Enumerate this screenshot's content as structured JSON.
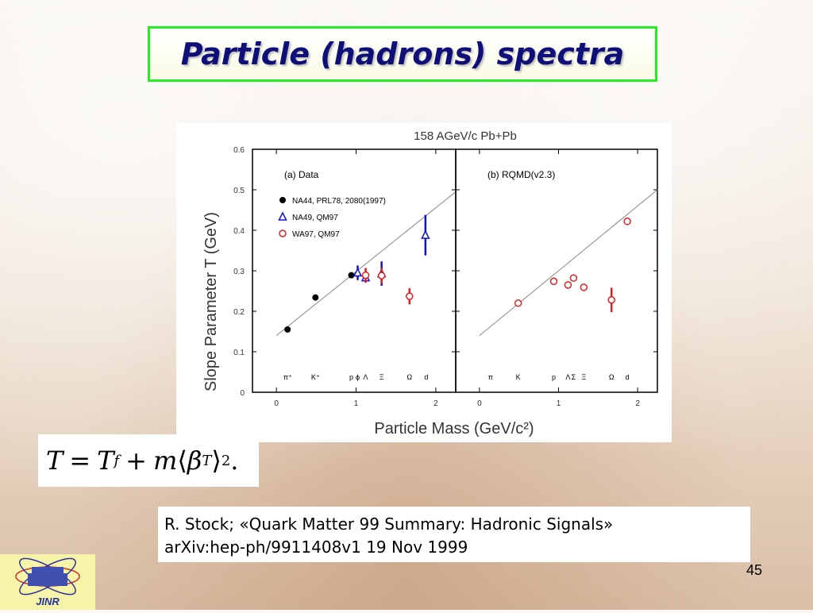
{
  "slide": {
    "title": "Particle (hadrons) spectra",
    "reference_line1": "R. Stock; «Quark Matter 99 Summary: Hadronic Signals»",
    "reference_line2": "arXiv:hep-ph/9911408v1 19 Nov 1999",
    "page_number": "45",
    "logo_text": "JINR",
    "formula": {
      "lhs": "T",
      "eq": "=",
      "t": "T",
      "t_sub": "f",
      "plus": "+",
      "m": "m",
      "open": "⟨",
      "beta": "β",
      "beta_sub": "T",
      "close": "⟩",
      "exp": "2",
      "end": "."
    },
    "colors": {
      "title_text": "#0f0f7a",
      "title_border": "#22ee22",
      "na44": "#000000",
      "na49": "#1010d0",
      "wa97": "#e02020"
    }
  },
  "chart_data": {
    "type": "scatter",
    "title": "158 AGeV/c Pb+Pb",
    "xlabel": "Particle Mass (GeV/c²)",
    "ylabel": "Slope Parameter T (GeV)",
    "xlim": [
      -0.3,
      2.25
    ],
    "ylim": [
      0,
      0.6
    ],
    "y_ticks": [
      "0",
      "0.1",
      "0.2",
      "0.3",
      "0.4",
      "0.5",
      "0.6"
    ],
    "x_ticks": [
      "0",
      "1",
      "2"
    ],
    "panels": [
      {
        "label": "(a) Data",
        "fit_line": [
          [
            0.0,
            0.14
          ],
          [
            2.25,
            0.495
          ]
        ],
        "particle_labels": [
          {
            "x": 0.14,
            "text": "π⁺"
          },
          {
            "x": 0.49,
            "text": "K⁺"
          },
          {
            "x": 0.94,
            "text": "p"
          },
          {
            "x": 1.02,
            "text": "ϕ"
          },
          {
            "x": 1.12,
            "text": "Λ"
          },
          {
            "x": 1.32,
            "text": "Ξ"
          },
          {
            "x": 1.67,
            "text": "Ω"
          },
          {
            "x": 1.88,
            "text": "d"
          }
        ],
        "legend_position": "top-left",
        "series": [
          {
            "name": "NA44, PRL78, 2080(1997)",
            "marker": "filled-circle",
            "points": [
              {
                "x": 0.14,
                "y": 0.155
              },
              {
                "x": 0.49,
                "y": 0.234
              },
              {
                "x": 0.94,
                "y": 0.289
              }
            ]
          },
          {
            "name": "NA49, QM97",
            "marker": "triangle",
            "points": [
              {
                "x": 1.02,
                "y": 0.295,
                "err": 0.018
              },
              {
                "x": 1.12,
                "y": 0.283,
                "err": 0.012
              },
              {
                "x": 1.32,
                "y": 0.293,
                "err": 0.03
              },
              {
                "x": 1.87,
                "y": 0.388,
                "err": 0.05
              }
            ]
          },
          {
            "name": "WA97, QM97",
            "marker": "open-circle",
            "points": [
              {
                "x": 1.12,
                "y": 0.289,
                "err": 0.018
              },
              {
                "x": 1.32,
                "y": 0.288,
                "err": 0.02
              },
              {
                "x": 1.67,
                "y": 0.237,
                "err": 0.02
              }
            ]
          }
        ]
      },
      {
        "label": "(b) RQMD(v2.3)",
        "fit_line": [
          [
            0.0,
            0.14
          ],
          [
            2.25,
            0.5
          ]
        ],
        "particle_labels": [
          {
            "x": 0.14,
            "text": "π"
          },
          {
            "x": 0.49,
            "text": "K"
          },
          {
            "x": 0.94,
            "text": "p"
          },
          {
            "x": 1.12,
            "text": "Λ"
          },
          {
            "x": 1.19,
            "text": "Σ"
          },
          {
            "x": 1.32,
            "text": "Ξ"
          },
          {
            "x": 1.67,
            "text": "Ω"
          },
          {
            "x": 1.87,
            "text": "d"
          }
        ],
        "series": [
          {
            "name": "RQMD",
            "marker": "open-circle",
            "points": [
              {
                "x": 0.49,
                "y": 0.22
              },
              {
                "x": 0.94,
                "y": 0.274
              },
              {
                "x": 1.12,
                "y": 0.265
              },
              {
                "x": 1.19,
                "y": 0.282
              },
              {
                "x": 1.32,
                "y": 0.259
              },
              {
                "x": 1.67,
                "y": 0.228,
                "err": 0.03
              },
              {
                "x": 1.87,
                "y": 0.422
              }
            ]
          }
        ]
      }
    ]
  }
}
